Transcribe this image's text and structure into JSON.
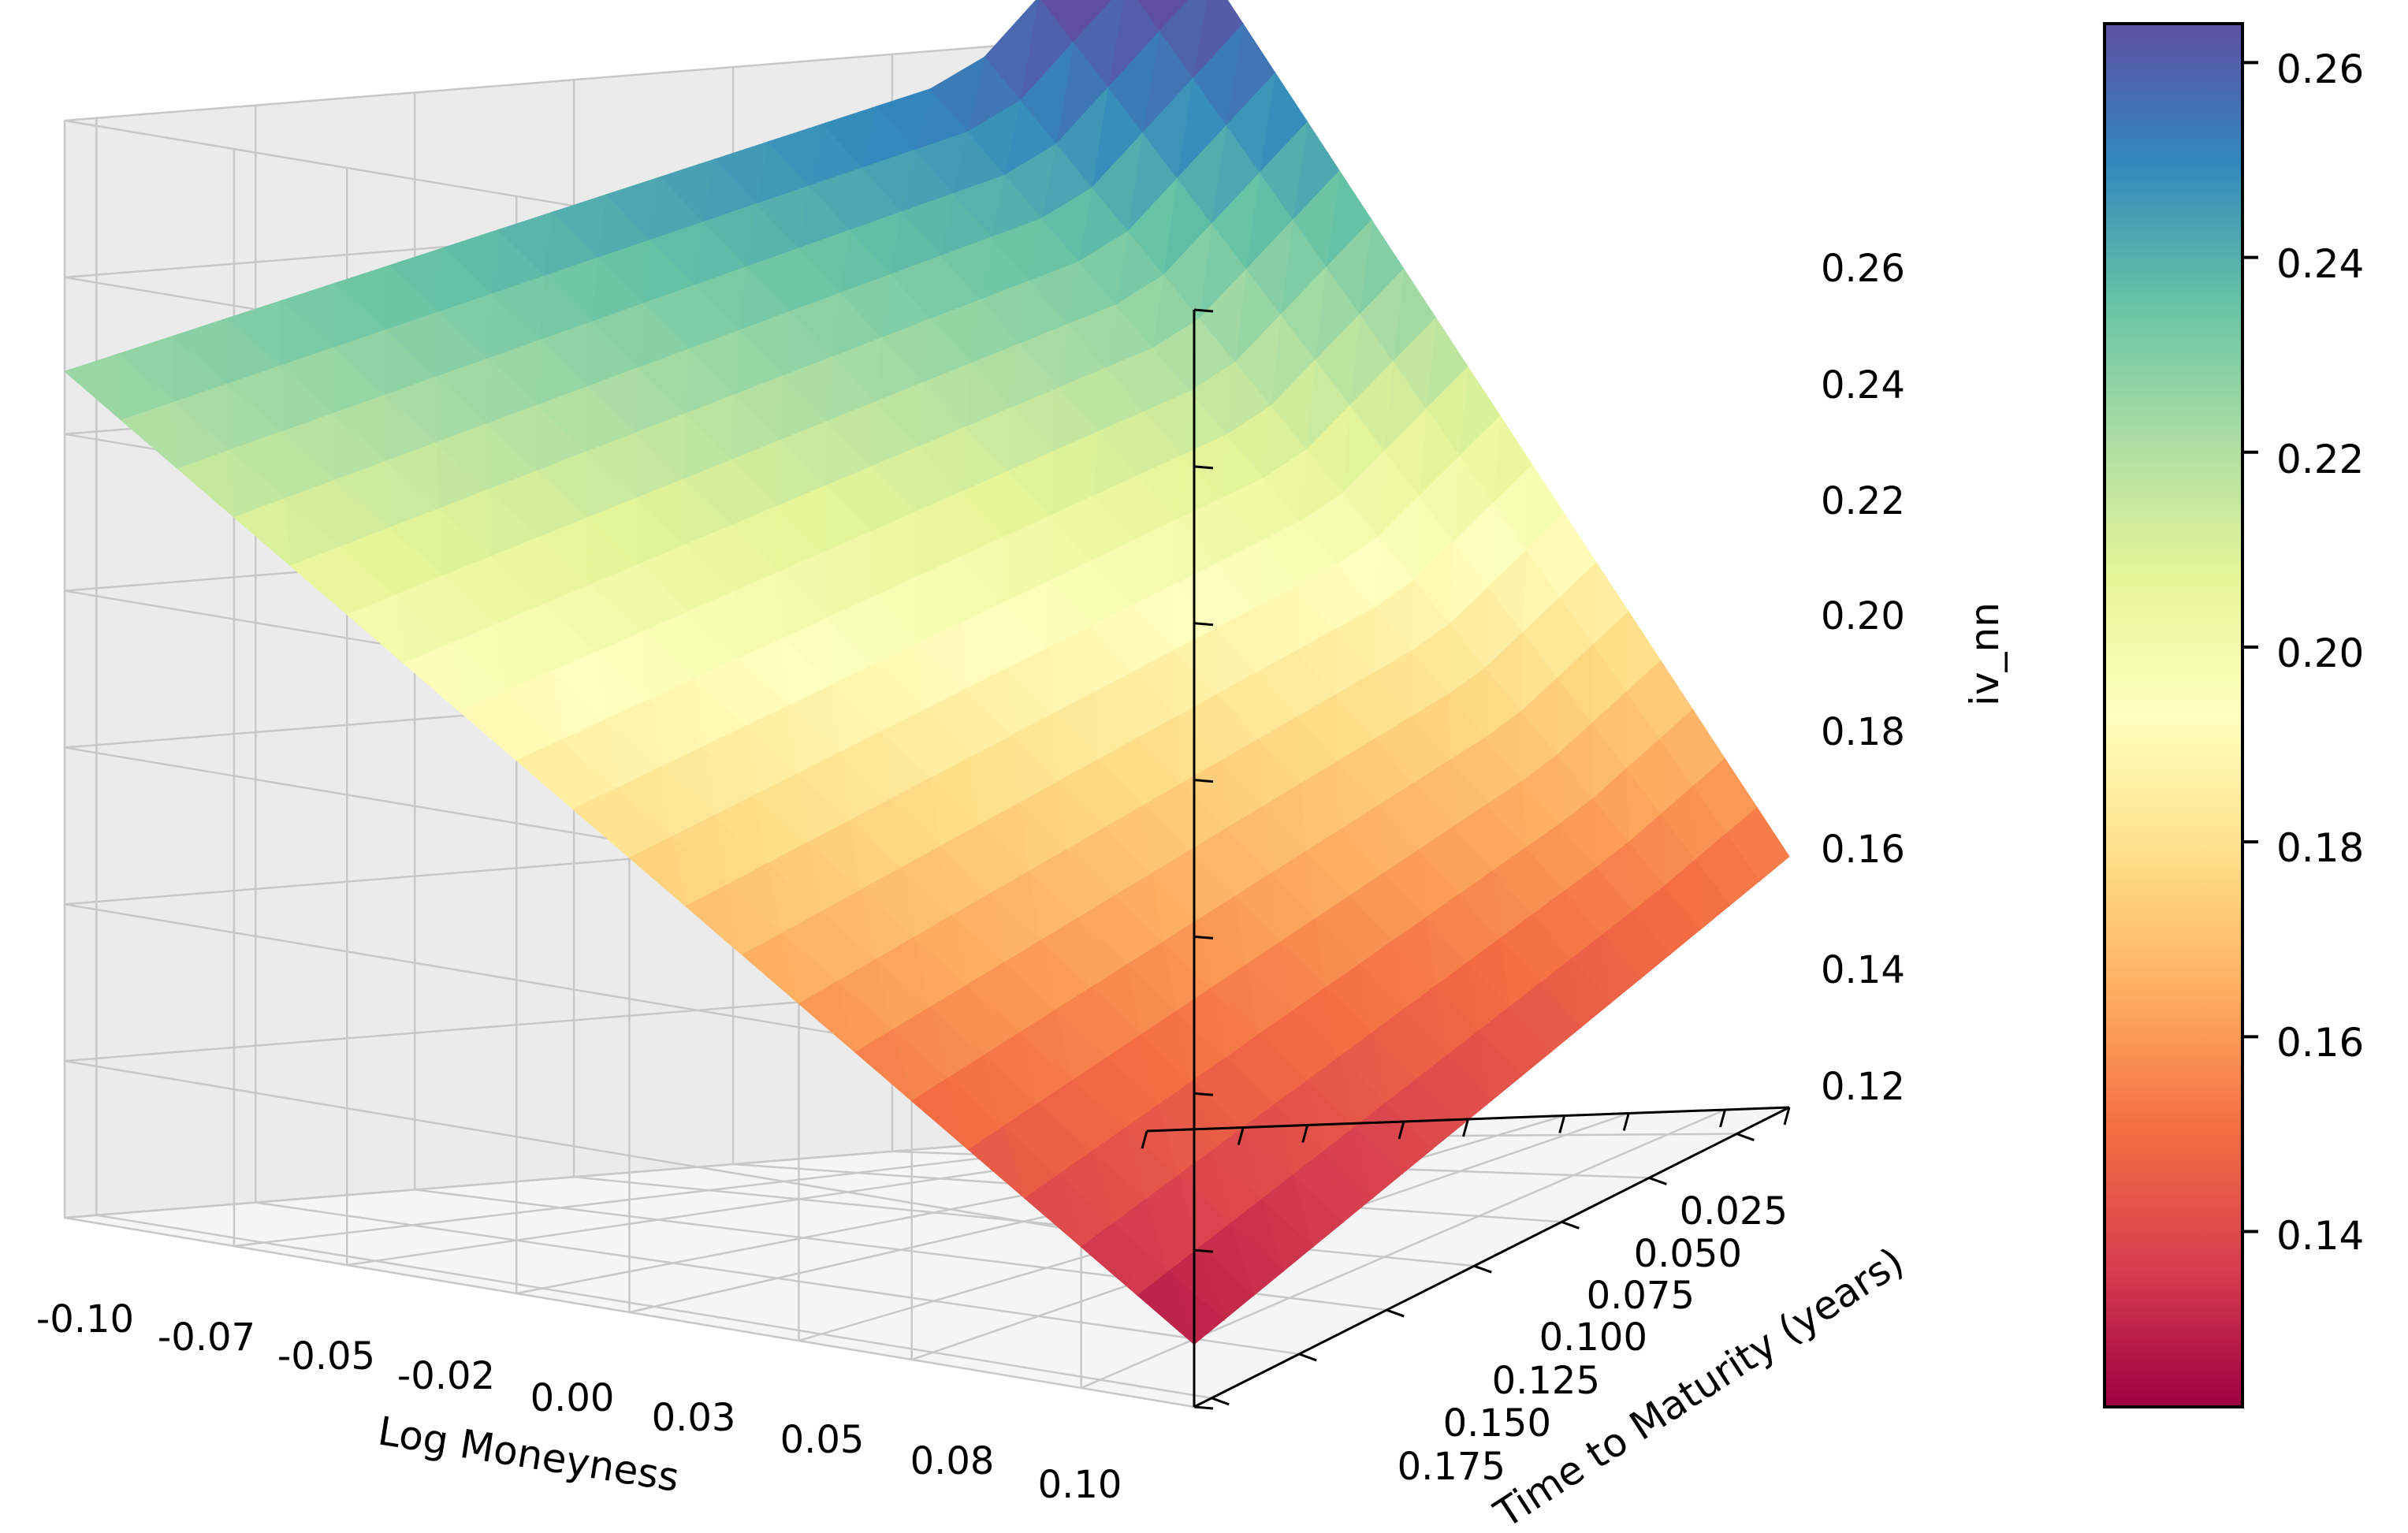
{
  "chart_data": {
    "type": "surface3d",
    "title": "",
    "xlabel": "Log Moneyness",
    "ylabel": "Time to Maturity (years)",
    "zlabel": "iv_nn",
    "x_ticks": [
      "-0.10",
      "-0.07",
      "-0.05",
      "-0.02",
      "0.00",
      "0.03",
      "0.05",
      "0.08",
      "0.10"
    ],
    "y_ticks": [
      "0.025",
      "0.050",
      "0.075",
      "0.100",
      "0.125",
      "0.150",
      "0.175"
    ],
    "z_ticks": [
      "0.12",
      "0.14",
      "0.16",
      "0.18",
      "0.20",
      "0.22",
      "0.24",
      "0.26"
    ],
    "xlim": [
      -0.1,
      0.1
    ],
    "ylim": [
      0.01,
      0.18
    ],
    "zlim": [
      0.12,
      0.26
    ],
    "colormap": "Spectral",
    "colorbar": {
      "range": [
        0.122,
        0.264
      ],
      "ticks": [
        "0.14",
        "0.16",
        "0.18",
        "0.20",
        "0.22",
        "0.24",
        "0.26"
      ]
    },
    "surface_corners": {
      "x_-0.10_t_0.010": 0.262,
      "x_0.10_t_0.010": 0.152,
      "x_-0.10_t_0.180": 0.228,
      "x_0.10_t_0.180": 0.128
    },
    "grid_size": [
      20,
      20
    ],
    "grid": true
  }
}
